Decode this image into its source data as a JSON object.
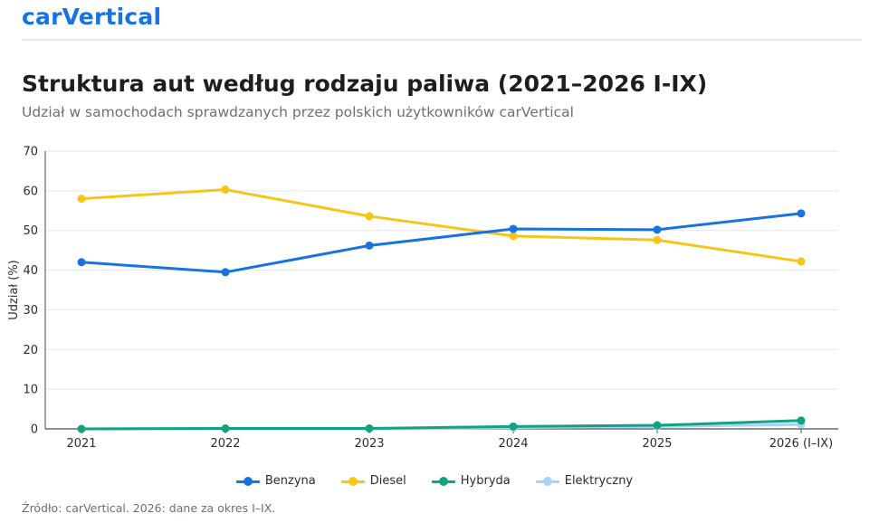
{
  "brand": "carVertical",
  "title": "Struktura aut według rodzaju paliwa (2021–2026 I-IX)",
  "subtitle": "Udział w samochodach sprawdzanych przez polskich użytkowników carVertical",
  "source": "Źródło: carVertical. 2026: dane za okres I–IX.",
  "chart_data": {
    "type": "line",
    "categories": [
      "2021",
      "2022",
      "2023",
      "2024",
      "2025",
      "2026 (I–IX)"
    ],
    "ylabel": "Udział (%)",
    "xlabel": "",
    "ylim": [
      0,
      70
    ],
    "yticks": [
      0,
      10,
      20,
      30,
      40,
      50,
      60,
      70
    ],
    "grid": true,
    "legend": "bottom",
    "series": [
      {
        "name": "Benzyna",
        "color": "#1673e0",
        "values": [
          42.0,
          39.5,
          46.2,
          50.4,
          50.2,
          54.3
        ]
      },
      {
        "name": "Diesel",
        "color": "#f5c518",
        "values": [
          58.0,
          60.3,
          53.6,
          48.6,
          47.6,
          42.2
        ]
      },
      {
        "name": "Hybryda",
        "color": "#10a37f",
        "values": [
          0.0,
          0.1,
          0.1,
          0.6,
          0.9,
          2.1
        ]
      },
      {
        "name": "Elektryczny",
        "color": "#a9d3f5",
        "values": [
          0.0,
          0.1,
          0.1,
          0.3,
          0.6,
          1.1
        ]
      }
    ]
  }
}
